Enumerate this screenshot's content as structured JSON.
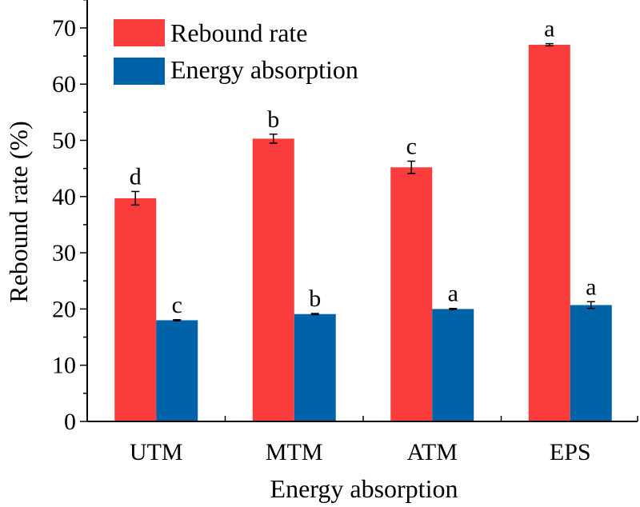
{
  "chart_data": {
    "type": "bar",
    "title": "",
    "xlabel": "Energy absorption",
    "ylabel": "Rebound rate (%)",
    "ylim": [
      0,
      75
    ],
    "yticks": [
      0,
      10,
      20,
      30,
      40,
      50,
      60,
      70
    ],
    "categories": [
      "UTM",
      "MTM",
      "ATM",
      "EPS"
    ],
    "legend_position": "top-left",
    "series": [
      {
        "name": "Rebound rate",
        "color": "#FA3C3C",
        "values": [
          39.7,
          50.3,
          45.2,
          67.0
        ],
        "errors": [
          1.2,
          0.8,
          1.1,
          0.2
        ],
        "letters": [
          "d",
          "b",
          "c",
          "a"
        ]
      },
      {
        "name": "Energy absorption",
        "color": "#0063A8",
        "values": [
          18.0,
          19.1,
          20.0,
          20.7
        ],
        "errors": [
          0.1,
          0.1,
          0.1,
          0.6
        ],
        "letters": [
          "c",
          "b",
          "a",
          "a"
        ]
      }
    ]
  }
}
